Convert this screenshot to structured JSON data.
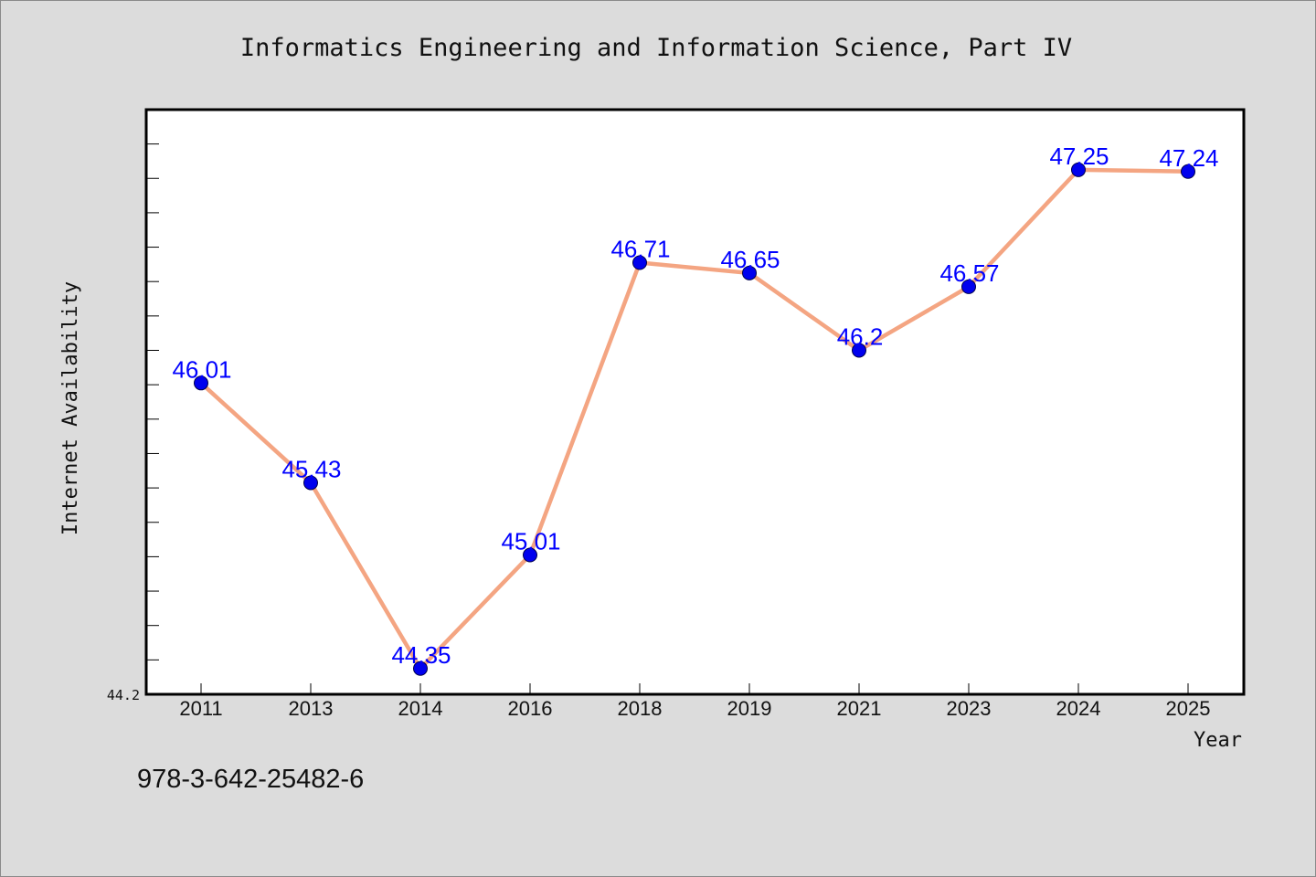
{
  "chart_data": {
    "type": "line",
    "title": "Informatics Engineering and Information Science, Part IV",
    "xlabel": "Year",
    "ylabel": "Internet Availability",
    "categories": [
      "2011",
      "2013",
      "2014",
      "2016",
      "2018",
      "2019",
      "2021",
      "2023",
      "2024",
      "2025"
    ],
    "series": [
      {
        "values": [
          46.01,
          45.43,
          44.35,
          45.01,
          46.71,
          46.65,
          46.2,
          46.57,
          47.25,
          47.24
        ],
        "labels": [
          "46.01",
          "45.43",
          "44.35",
          "45.01",
          "46.71",
          "46.65",
          "46.2",
          "46.57",
          "47.25",
          "47.24"
        ]
      }
    ],
    "ylim": [
      44.2,
      47.6
    ],
    "y_tick_label": "44.2",
    "grid": false,
    "legend": "none",
    "colors": {
      "line": "#f4a582",
      "marker": "#0000ee",
      "data_label": "#0000ff",
      "background": "#dcdcdc",
      "plot_background": "#ffffff"
    }
  },
  "footer": {
    "isbn": "978-3-642-25482-6"
  }
}
